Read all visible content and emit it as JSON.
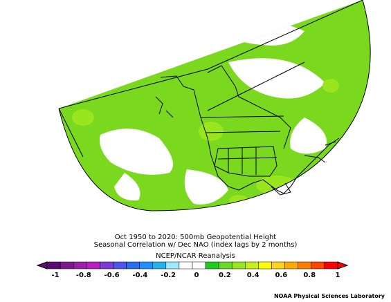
{
  "title_line1": "Oct 1950 to 2020: 500mb Geopotential Height",
  "title_line2": "Seasonal Correlation w/ Dec NAO (index lags by 2 months)",
  "dataset": "NCEP/NCAR Reanalysis",
  "credit": "NOAA Physical Sciences Laboratory",
  "colorbar": {
    "ticks": [
      "-1",
      "-0.8",
      "-0.6",
      "-0.4",
      "-0.2",
      "0",
      "0.2",
      "0.4",
      "0.6",
      "0.8",
      "1"
    ],
    "colors": [
      "#5a0f6e",
      "#7a1a8e",
      "#9b1fa8",
      "#b81ec2",
      "#7a3ad8",
      "#4d54e6",
      "#2a6cf0",
      "#1e90ff",
      "#22b2ee",
      "#a0e8ff",
      "#ffffff",
      "#ffffff",
      "#1ecc1e",
      "#66dd22",
      "#99e51e",
      "#c8ee1e",
      "#ffff00",
      "#ffd21e",
      "#ffaa00",
      "#ff7d00",
      "#ff4600",
      "#ff0000"
    ]
  },
  "map_colors": {
    "land_fill": "#7ad81e",
    "positive_core": "#99e51e",
    "ocean_fill": "#ffffff"
  }
}
